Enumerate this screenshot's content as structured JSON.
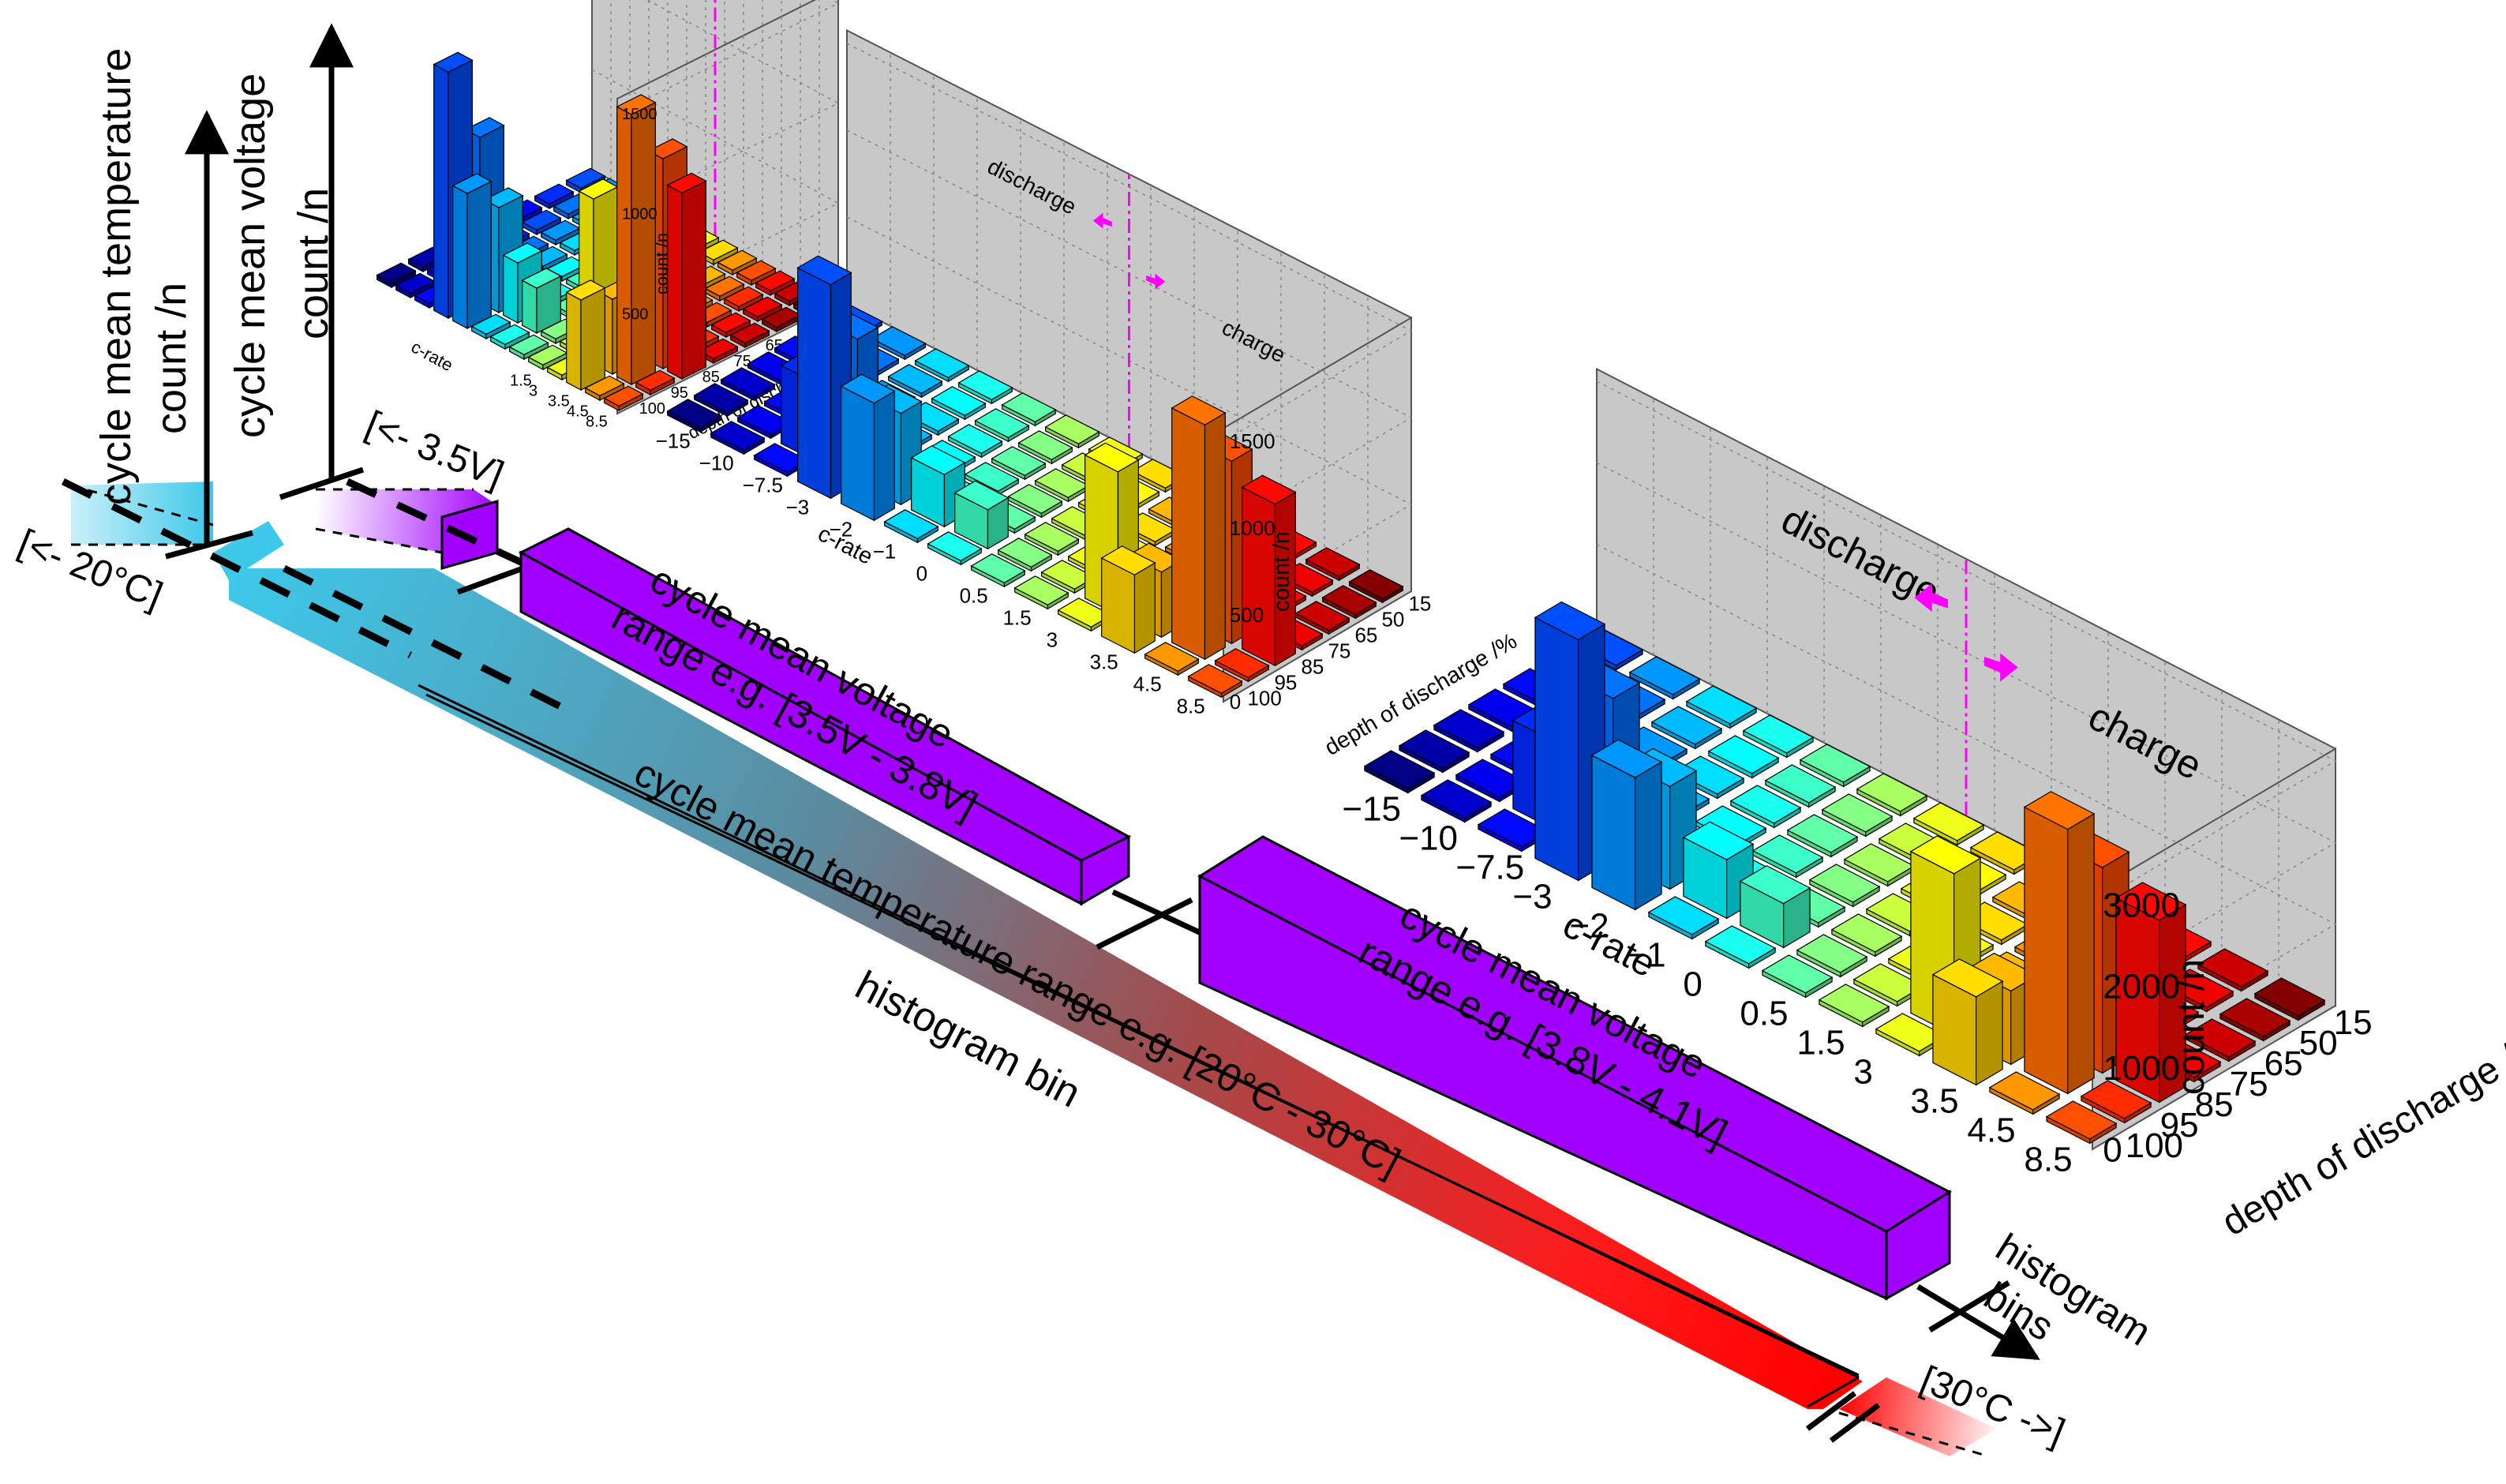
{
  "axes": {
    "temperature": "cycle mean temperature",
    "voltage": "cycle mean voltage",
    "count_big": "count /n",
    "count_small": "count /n",
    "histogram_bin": "histogram bin",
    "histogram_bins": "histogram\nbins"
  },
  "bins": {
    "temp_low": "[<- 20°C]",
    "temp_high": "[30°C ->]",
    "volt_low": "[<- 3.5V]",
    "temp_band": "cycle mean temperature range e.g. [20°C - 30°C]",
    "volt_band_1": "cycle mean voltage\nrange e.g. [3.5V - 3.8V]",
    "volt_band_2": "cycle mean voltage\nrange e.g. [3.8V - 4.1V]"
  },
  "histogram_labels": {
    "discharge": "discharge",
    "charge": "charge",
    "xlabel": "c-rate",
    "ylabel": "depth of discharge /%",
    "zlabel": "count /n",
    "xticks": [
      "−15",
      "−10",
      "−7.5",
      "−3",
      "−2",
      "−1",
      "0",
      "0.5",
      "1.5",
      "3",
      "3.5",
      "4.5",
      "8.5"
    ],
    "yticks": [
      "15",
      "50",
      "65",
      "75",
      "85",
      "95",
      "100"
    ]
  },
  "histograms": [
    {
      "zticks": [
        "500",
        "1000",
        "1500"
      ],
      "zmax": 1500,
      "xticks_visible": [
        "1.5",
        "3",
        "3.5",
        "4.5",
        "8.5"
      ]
    },
    {
      "zticks": [
        "0",
        "500",
        "1000",
        "1500"
      ],
      "zmax": 1500
    },
    {
      "zticks": [
        "0",
        "1000",
        "2000",
        "3000"
      ],
      "zmax": 3000
    }
  ],
  "colors": {
    "violet": "#a100ff",
    "axis": "#000000",
    "magenta": "#ff00ff",
    "panel": "#c8c8c8"
  }
}
